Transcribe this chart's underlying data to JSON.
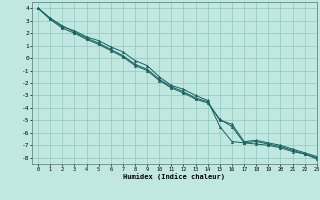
{
  "xlabel": "Humidex (Indice chaleur)",
  "background_color": "#c0e8e0",
  "grid_color": "#90c8c0",
  "line_color": "#1a6060",
  "marker_color": "#1a6060",
  "xlim": [
    -0.5,
    23
  ],
  "ylim": [
    -8.5,
    4.5
  ],
  "xticks": [
    0,
    1,
    2,
    3,
    4,
    5,
    6,
    7,
    8,
    9,
    10,
    11,
    12,
    13,
    14,
    15,
    16,
    17,
    18,
    19,
    20,
    21,
    22,
    23
  ],
  "yticks": [
    -8,
    -7,
    -6,
    -5,
    -4,
    -3,
    -2,
    -1,
    0,
    1,
    2,
    3,
    4
  ],
  "series": [
    [
      4.0,
      3.2,
      2.5,
      2.2,
      1.7,
      1.4,
      0.9,
      0.5,
      -0.2,
      -0.6,
      -1.5,
      -2.2,
      -2.5,
      -3.0,
      -3.4,
      -5.5,
      -6.7,
      -6.8,
      -6.9,
      -7.0,
      -7.2,
      -7.5,
      -7.7,
      -8.1
    ],
    [
      4.0,
      3.2,
      2.6,
      2.1,
      1.6,
      1.2,
      0.7,
      0.2,
      -0.5,
      -0.9,
      -1.7,
      -2.3,
      -2.7,
      -3.2,
      -3.5,
      -5.0,
      -5.3,
      -6.7,
      -6.6,
      -6.8,
      -7.0,
      -7.3,
      -7.6,
      -7.9
    ],
    [
      4.0,
      3.1,
      2.4,
      2.0,
      1.5,
      1.1,
      0.6,
      0.1,
      -0.6,
      -1.0,
      -1.8,
      -2.4,
      -2.8,
      -3.3,
      -3.6,
      -4.9,
      -5.5,
      -6.8,
      -6.7,
      -6.9,
      -7.1,
      -7.4,
      -7.7,
      -8.0
    ]
  ]
}
